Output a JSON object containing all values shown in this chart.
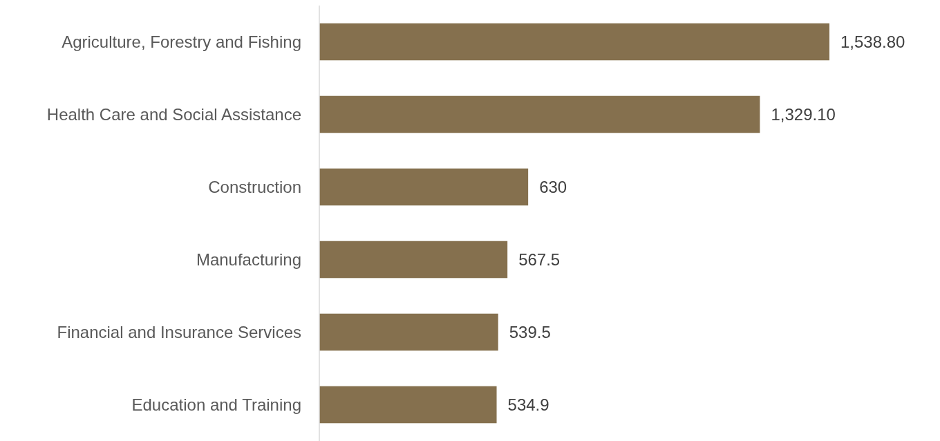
{
  "chart_data": {
    "type": "bar",
    "orientation": "horizontal",
    "categories": [
      "Agriculture, Forestry and Fishing",
      "Health Care and Social Assistance",
      "Construction",
      "Manufacturing",
      "Financial and Insurance Services",
      "Education and Training"
    ],
    "values": [
      1538.8,
      1329.1,
      630,
      567.5,
      539.5,
      534.9
    ],
    "value_labels": [
      "1,538.80",
      "1,329.10",
      "630",
      "567.5",
      "539.5",
      "534.9"
    ],
    "color": "#85704e"
  }
}
